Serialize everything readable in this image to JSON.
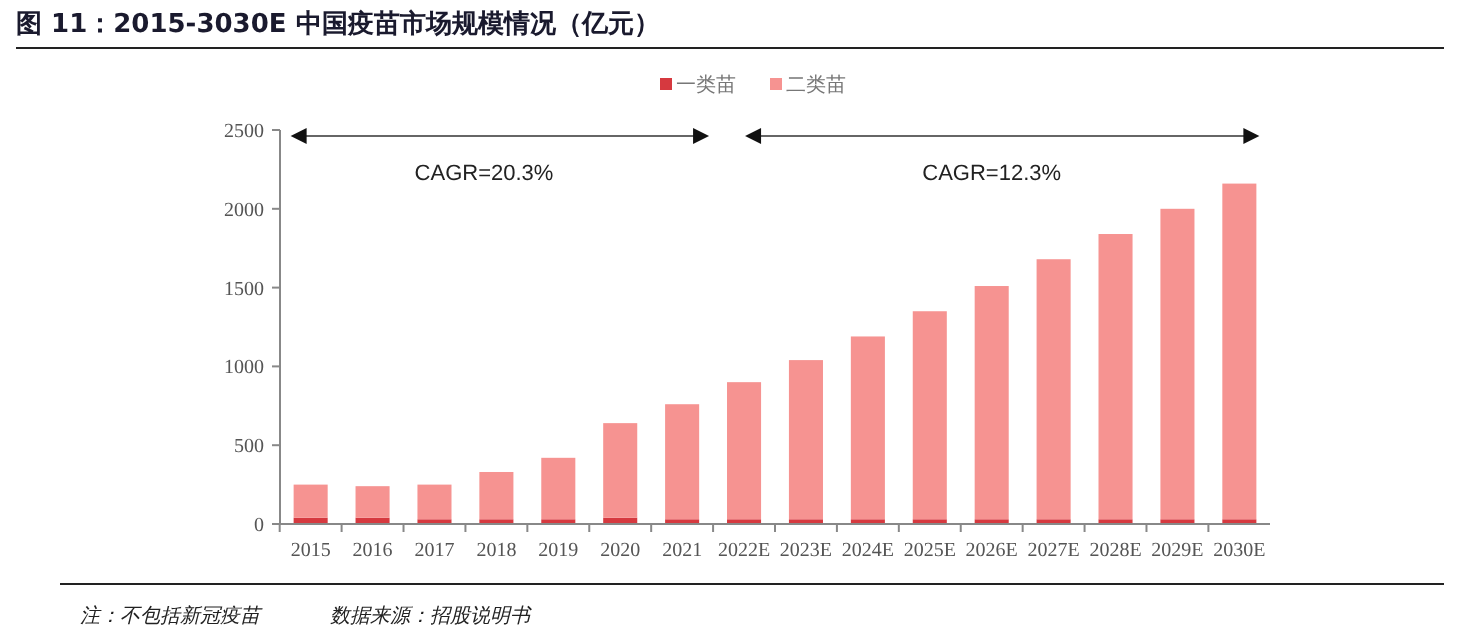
{
  "chart_data": {
    "type": "bar",
    "title": "图 11：2015-3030E 中国疫苗市场规模情况（亿元）",
    "stacked": true,
    "categories": [
      "2015",
      "2016",
      "2017",
      "2018",
      "2019",
      "2020",
      "2021",
      "2022E",
      "2023E",
      "2024E",
      "2025E",
      "2026E",
      "2027E",
      "2028E",
      "2029E",
      "2030E"
    ],
    "series": [
      {
        "name": "一类苗",
        "color": "#d6393f",
        "values": [
          40,
          40,
          30,
          30,
          30,
          40,
          30,
          30,
          30,
          30,
          30,
          30,
          30,
          30,
          30,
          30
        ]
      },
      {
        "name": "二类苗",
        "color": "#f69391",
        "values": [
          210,
          200,
          220,
          300,
          390,
          600,
          730,
          870,
          1010,
          1160,
          1320,
          1480,
          1650,
          1810,
          1970,
          2130
        ]
      }
    ],
    "ylim": [
      0,
      2500
    ],
    "yticks": [
      0,
      500,
      1000,
      1500,
      2000,
      2500
    ],
    "grid": false,
    "legend": "top",
    "annotations": [
      "CAGR=20.3%",
      "CAGR=12.3%",
      "注：不包括新冠疫苗",
      "数据来源：招股说明书"
    ]
  }
}
